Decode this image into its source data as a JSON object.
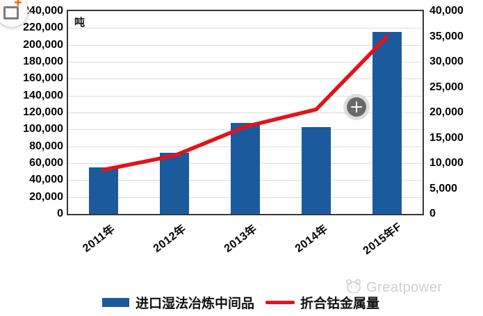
{
  "chart_data": {
    "type": "bar+line",
    "title": "",
    "unit_label": "吨",
    "categories": [
      "2011年",
      "2012年",
      "2013年",
      "2014年",
      "2015年F"
    ],
    "series": [
      {
        "name": "进口湿法冶炼中间品",
        "type": "bar",
        "axis": "left",
        "color": "#1c5a9e",
        "values": [
          55000,
          72000,
          108000,
          103000,
          215000
        ]
      },
      {
        "name": "折合钴金属量",
        "type": "line",
        "axis": "right",
        "color": "#e2131c",
        "values": [
          8700,
          11500,
          17200,
          20600,
          35000
        ]
      }
    ],
    "left_axis": {
      "min": 0,
      "max": 240000,
      "step": 20000,
      "tick_labels": [
        "0",
        "20,000",
        "40,000",
        "60,000",
        "80,000",
        "100,000",
        "120,000",
        "140,000",
        "160,000",
        "180,000",
        "200,000",
        "220,000",
        "240,000"
      ]
    },
    "right_axis": {
      "min": 0,
      "max": 40000,
      "step": 5000,
      "tick_labels": [
        "0",
        "5,000",
        "10,000",
        "15,000",
        "20,000",
        "25,000",
        "30,000",
        "35,000",
        "40,000"
      ]
    },
    "grid": true,
    "legend_position": "bottom"
  },
  "watermark": {
    "text": "Greatpower"
  },
  "icons": {
    "corner": "screenshot-add-icon",
    "corner_plus_glyph": "+",
    "overlay": "zoom-plus-icon",
    "watermark_logo": "greatpower-mascot-icon"
  },
  "colors": {
    "bar": "#1c5a9e",
    "line": "#e2131c",
    "grid": "#dcdcdc",
    "axis_text": "#050505",
    "plot_border": "#383838",
    "watermark": "#cfcfcf",
    "corner_plus": "#ff5a00",
    "overlay_circle": "#696969"
  }
}
